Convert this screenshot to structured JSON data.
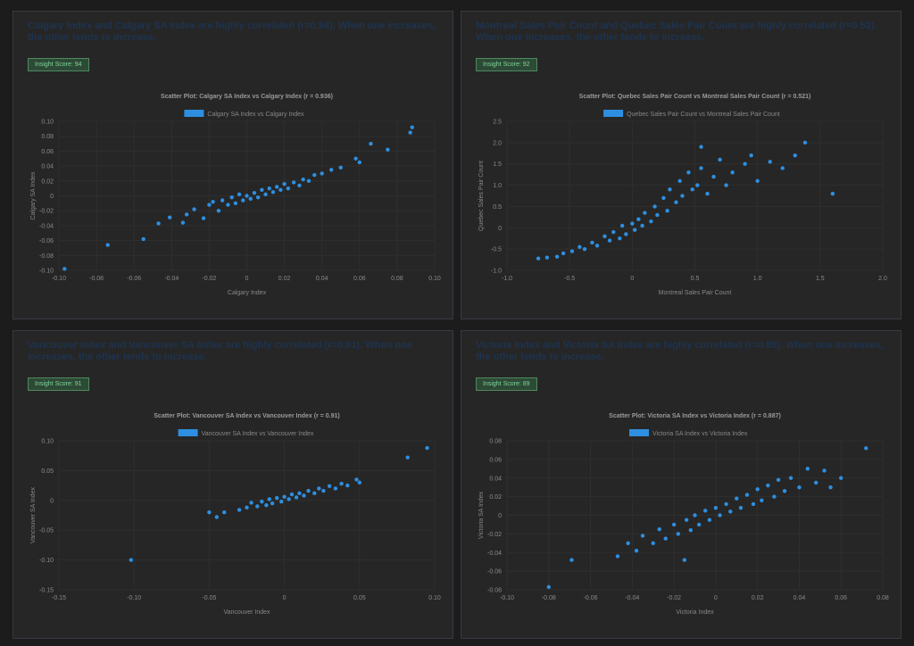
{
  "colors": {
    "point": "#2e8fe0",
    "badge_text": "#7fd69a"
  },
  "panels": [
    {
      "insight": "Calgary Index and Calgary SA Index are highly correlated (r=0.94). When one increases, the other tends to increase.",
      "score": "Insight Score: 94"
    },
    {
      "insight": "Montreal Sales Pair Count and Quebec Sales Pair Count are highly correlated (r=0.52). When one increases, the other tends to increase.",
      "score": "Insight Score: 92"
    },
    {
      "insight": "Vancouver Index and Vancouver SA Index are highly correlated (r=0.91). When one increases, the other tends to increase.",
      "score": "Insight Score: 91"
    },
    {
      "insight": "Victoria Index and Victoria SA Index are highly correlated (r=0.89). When one increases, the other tends to increase.",
      "score": "Insight Score: 89"
    }
  ],
  "chart_data": [
    {
      "type": "scatter",
      "title": "Scatter Plot: Calgary SA Index vs Calgary Index (r = 0.936)",
      "legend": "Calgary SA Index vs Calgary Index",
      "xlabel": "Calgary Index",
      "ylabel": "Calgary SA Index",
      "xlim": [
        -0.1,
        0.1
      ],
      "ylim": [
        -0.1,
        0.1
      ],
      "xticks": [
        "-0.10",
        "-0.08",
        "-0.06",
        "-0.04",
        "-0.02",
        "0",
        "0.02",
        "0.04",
        "0.06",
        "0.08",
        "0.10"
      ],
      "yticks": [
        "-0.10",
        "-0.08",
        "-0.06",
        "-0.04",
        "-0.02",
        "0",
        "0.02",
        "0.04",
        "0.06",
        "0.08",
        "0.10"
      ],
      "points": [
        [
          -0.097,
          -0.098
        ],
        [
          -0.074,
          -0.066
        ],
        [
          -0.055,
          -0.058
        ],
        [
          -0.047,
          -0.037
        ],
        [
          -0.041,
          -0.029
        ],
        [
          -0.034,
          -0.036
        ],
        [
          -0.032,
          -0.025
        ],
        [
          -0.028,
          -0.018
        ],
        [
          -0.023,
          -0.03
        ],
        [
          -0.02,
          -0.012
        ],
        [
          -0.018,
          -0.008
        ],
        [
          -0.015,
          -0.02
        ],
        [
          -0.013,
          -0.006
        ],
        [
          -0.01,
          -0.012
        ],
        [
          -0.008,
          -0.002
        ],
        [
          -0.006,
          -0.01
        ],
        [
          -0.004,
          0.002
        ],
        [
          -0.002,
          -0.006
        ],
        [
          0,
          0
        ],
        [
          0.002,
          -0.004
        ],
        [
          0.004,
          0.004
        ],
        [
          0.006,
          -0.002
        ],
        [
          0.008,
          0.008
        ],
        [
          0.01,
          0.002
        ],
        [
          0.012,
          0.01
        ],
        [
          0.014,
          0.005
        ],
        [
          0.016,
          0.012
        ],
        [
          0.018,
          0.008
        ],
        [
          0.02,
          0.016
        ],
        [
          0.022,
          0.01
        ],
        [
          0.025,
          0.018
        ],
        [
          0.028,
          0.014
        ],
        [
          0.03,
          0.022
        ],
        [
          0.033,
          0.02
        ],
        [
          0.036,
          0.028
        ],
        [
          0.04,
          0.03
        ],
        [
          0.045,
          0.035
        ],
        [
          0.05,
          0.038
        ],
        [
          0.058,
          0.05
        ],
        [
          0.06,
          0.045
        ],
        [
          0.066,
          0.07
        ],
        [
          0.075,
          0.062
        ],
        [
          0.087,
          0.085
        ],
        [
          0.088,
          0.092
        ]
      ]
    },
    {
      "type": "scatter",
      "title": "Scatter Plot: Quebec Sales Pair Count vs Montreal Sales Pair Count (r = 0.521)",
      "legend": "Quebec Sales Pair Count vs Montreal Sales Pair Count",
      "xlabel": "Montreal Sales Pair Count",
      "ylabel": "Quebec Sales Pair Count",
      "xlim": [
        -1,
        2
      ],
      "ylim": [
        -1,
        2.5
      ],
      "xticks": [
        "-1.0",
        "-0.5",
        "0",
        "0.5",
        "1.0",
        "1.5",
        "2.0"
      ],
      "yticks": [
        "-1.0",
        "-0.5",
        "0",
        "0.5",
        "1.0",
        "1.5",
        "2.0",
        "2.5"
      ],
      "points": [
        [
          -0.75,
          -0.72
        ],
        [
          -0.68,
          -0.7
        ],
        [
          -0.6,
          -0.68
        ],
        [
          -0.55,
          -0.6
        ],
        [
          -0.48,
          -0.55
        ],
        [
          -0.42,
          -0.45
        ],
        [
          -0.38,
          -0.5
        ],
        [
          -0.32,
          -0.35
        ],
        [
          -0.28,
          -0.42
        ],
        [
          -0.22,
          -0.2
        ],
        [
          -0.18,
          -0.3
        ],
        [
          -0.15,
          -0.1
        ],
        [
          -0.1,
          -0.25
        ],
        [
          -0.08,
          0.05
        ],
        [
          -0.05,
          -0.15
        ],
        [
          0,
          0.1
        ],
        [
          0.02,
          -0.05
        ],
        [
          0.05,
          0.2
        ],
        [
          0.08,
          0.05
        ],
        [
          0.1,
          0.35
        ],
        [
          0.15,
          0.15
        ],
        [
          0.18,
          0.5
        ],
        [
          0.2,
          0.3
        ],
        [
          0.25,
          0.7
        ],
        [
          0.28,
          0.4
        ],
        [
          0.3,
          0.9
        ],
        [
          0.35,
          0.6
        ],
        [
          0.38,
          1.1
        ],
        [
          0.4,
          0.75
        ],
        [
          0.45,
          1.3
        ],
        [
          0.48,
          0.9
        ],
        [
          0.52,
          1.0
        ],
        [
          0.55,
          1.4
        ],
        [
          0.6,
          0.8
        ],
        [
          0.65,
          1.2
        ],
        [
          0.7,
          1.6
        ],
        [
          0.75,
          1.0
        ],
        [
          0.8,
          1.3
        ],
        [
          0.9,
          1.5
        ],
        [
          0.95,
          1.7
        ],
        [
          1.0,
          1.1
        ],
        [
          1.1,
          1.55
        ],
        [
          1.2,
          1.4
        ],
        [
          1.3,
          1.7
        ],
        [
          1.38,
          2.0
        ],
        [
          0.55,
          1.9
        ],
        [
          1.6,
          0.8
        ]
      ]
    },
    {
      "type": "scatter",
      "title": "Scatter Plot: Vancouver SA Index vs Vancouver Index (r = 0.91)",
      "legend": "Vancouver SA Index vs Vancouver Index",
      "xlabel": "Vancouver Index",
      "ylabel": "Vancouver SA Index",
      "xlim": [
        -0.15,
        0.1
      ],
      "ylim": [
        -0.15,
        0.1
      ],
      "xticks": [
        "-0.15",
        "-0.10",
        "-0.05",
        "0",
        "0.05",
        "0.10"
      ],
      "yticks": [
        "-0.15",
        "-0.10",
        "-0.05",
        "0",
        "0.05",
        "0.10"
      ],
      "points": [
        [
          -0.102,
          -0.1
        ],
        [
          -0.05,
          -0.02
        ],
        [
          -0.045,
          -0.028
        ],
        [
          -0.04,
          -0.02
        ],
        [
          -0.03,
          -0.016
        ],
        [
          -0.025,
          -0.012
        ],
        [
          -0.022,
          -0.004
        ],
        [
          -0.018,
          -0.01
        ],
        [
          -0.015,
          -0.002
        ],
        [
          -0.012,
          -0.008
        ],
        [
          -0.01,
          0.002
        ],
        [
          -0.008,
          -0.005
        ],
        [
          -0.005,
          0.004
        ],
        [
          -0.002,
          -0.002
        ],
        [
          0,
          0.006
        ],
        [
          0.003,
          0.002
        ],
        [
          0.005,
          0.01
        ],
        [
          0.008,
          0.005
        ],
        [
          0.01,
          0.012
        ],
        [
          0.013,
          0.008
        ],
        [
          0.016,
          0.016
        ],
        [
          0.02,
          0.012
        ],
        [
          0.023,
          0.02
        ],
        [
          0.026,
          0.016
        ],
        [
          0.03,
          0.024
        ],
        [
          0.034,
          0.02
        ],
        [
          0.038,
          0.028
        ],
        [
          0.042,
          0.025
        ],
        [
          0.048,
          0.035
        ],
        [
          0.05,
          0.03
        ],
        [
          0.082,
          0.072
        ],
        [
          0.095,
          0.088
        ]
      ]
    },
    {
      "type": "scatter",
      "title": "Scatter Plot: Victoria SA Index vs Victoria Index (r = 0.887)",
      "legend": "Victoria SA Index vs Victoria Index",
      "xlabel": "Victoria Index",
      "ylabel": "Victoria SA Index",
      "xlim": [
        -0.1,
        0.08
      ],
      "ylim": [
        -0.08,
        0.08
      ],
      "xticks": [
        "-0.10",
        "-0.08",
        "-0.06",
        "-0.04",
        "-0.02",
        "0",
        "0.02",
        "0.04",
        "0.06",
        "0.08"
      ],
      "yticks": [
        "-0.08",
        "-0.06",
        "-0.04",
        "-0.02",
        "0",
        "0.02",
        "0.04",
        "0.06",
        "0.08"
      ],
      "points": [
        [
          -0.08,
          -0.077
        ],
        [
          -0.069,
          -0.048
        ],
        [
          -0.047,
          -0.044
        ],
        [
          -0.042,
          -0.03
        ],
        [
          -0.038,
          -0.038
        ],
        [
          -0.035,
          -0.022
        ],
        [
          -0.03,
          -0.03
        ],
        [
          -0.027,
          -0.015
        ],
        [
          -0.024,
          -0.025
        ],
        [
          -0.02,
          -0.01
        ],
        [
          -0.018,
          -0.02
        ],
        [
          -0.015,
          -0.048
        ],
        [
          -0.014,
          -0.005
        ],
        [
          -0.012,
          -0.016
        ],
        [
          -0.01,
          0
        ],
        [
          -0.008,
          -0.01
        ],
        [
          -0.005,
          0.005
        ],
        [
          -0.003,
          -0.005
        ],
        [
          0,
          0.008
        ],
        [
          0.002,
          0
        ],
        [
          0.005,
          0.012
        ],
        [
          0.007,
          0.004
        ],
        [
          0.01,
          0.018
        ],
        [
          0.012,
          0.008
        ],
        [
          0.015,
          0.022
        ],
        [
          0.018,
          0.012
        ],
        [
          0.02,
          0.028
        ],
        [
          0.022,
          0.016
        ],
        [
          0.025,
          0.032
        ],
        [
          0.028,
          0.02
        ],
        [
          0.03,
          0.038
        ],
        [
          0.033,
          0.026
        ],
        [
          0.036,
          0.04
        ],
        [
          0.04,
          0.03
        ],
        [
          0.044,
          0.05
        ],
        [
          0.048,
          0.035
        ],
        [
          0.052,
          0.048
        ],
        [
          0.055,
          0.03
        ],
        [
          0.06,
          0.04
        ],
        [
          0.072,
          0.072
        ]
      ]
    }
  ]
}
